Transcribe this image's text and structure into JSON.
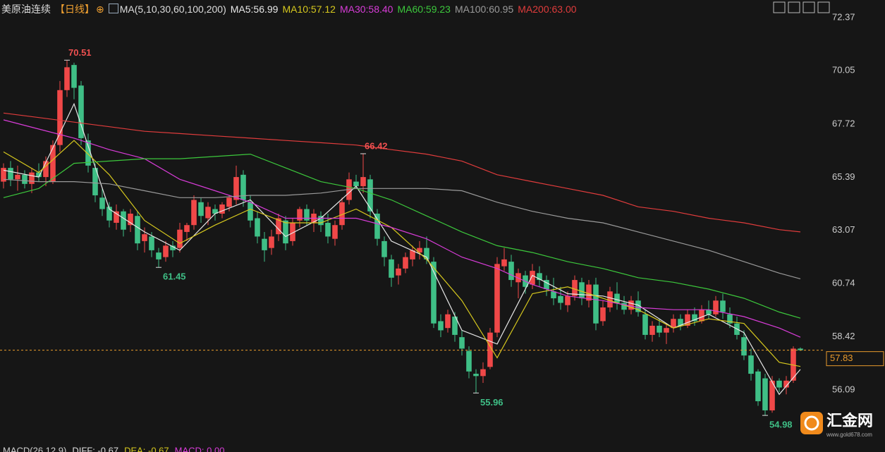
{
  "chart_data": {
    "type": "candlestick",
    "title": "美原油连续",
    "period": "【日线】",
    "ma_label": "MA(5,10,30,60,100,200)",
    "footer": [
      "MACD(26,12,9)",
      "DIFF: -0.67",
      "DEA: -0.67",
      "MACD: 0.00"
    ],
    "logo": {
      "name": "汇金网",
      "url": "www.gold678.com"
    },
    "up_color": "#f04848",
    "down_color": "#3fbf86",
    "ylim": [
      54.49,
      73.14
    ],
    "yticks": [
      72.37,
      70.05,
      67.72,
      65.39,
      63.07,
      60.74,
      58.42,
      56.09
    ],
    "last_price": 57.83,
    "annotations": [
      70.51,
      66.42,
      61.45,
      55.96,
      54.98
    ],
    "candles": [
      [
        65.2,
        66.0,
        64.9,
        65.8
      ],
      [
        65.8,
        66.1,
        65.0,
        65.3
      ],
      [
        65.3,
        65.9,
        64.8,
        65.5
      ],
      [
        65.5,
        65.7,
        64.9,
        65.1
      ],
      [
        65.1,
        65.8,
        64.7,
        65.6
      ],
      [
        65.6,
        66.0,
        65.2,
        65.4
      ],
      [
        65.4,
        66.3,
        65.0,
        66.1
      ],
      [
        65.2,
        67.0,
        65.1,
        66.8
      ],
      [
        66.8,
        69.6,
        66.5,
        69.2
      ],
      [
        69.2,
        70.51,
        68.9,
        70.2
      ],
      [
        70.3,
        70.4,
        68.8,
        69.3
      ],
      [
        69.4,
        69.6,
        66.8,
        67.1
      ],
      [
        67.0,
        67.3,
        65.6,
        65.9
      ],
      [
        65.8,
        66.0,
        64.3,
        64.6
      ],
      [
        64.5,
        64.9,
        63.7,
        64.0
      ],
      [
        64.1,
        64.3,
        63.2,
        63.5
      ],
      [
        63.4,
        64.2,
        63.1,
        63.9
      ],
      [
        63.9,
        64.0,
        62.8,
        63.1
      ],
      [
        63.3,
        64.0,
        63.0,
        63.8
      ],
      [
        63.7,
        63.9,
        62.2,
        62.5
      ],
      [
        62.6,
        63.2,
        62.1,
        62.9
      ],
      [
        62.8,
        63.0,
        61.9,
        62.2
      ],
      [
        62.1,
        62.3,
        61.45,
        61.8
      ],
      [
        61.9,
        62.6,
        61.7,
        62.4
      ],
      [
        62.4,
        62.6,
        61.9,
        62.2
      ],
      [
        62.3,
        63.4,
        62.1,
        63.1
      ],
      [
        63.0,
        63.4,
        62.6,
        63.3
      ],
      [
        63.3,
        64.6,
        63.1,
        64.4
      ],
      [
        64.3,
        64.5,
        63.4,
        63.7
      ],
      [
        63.6,
        64.3,
        63.3,
        64.1
      ],
      [
        64.0,
        64.2,
        63.5,
        63.8
      ],
      [
        63.8,
        64.3,
        63.6,
        64.2
      ],
      [
        64.1,
        64.6,
        63.9,
        64.5
      ],
      [
        64.4,
        65.9,
        64.2,
        65.4
      ],
      [
        65.5,
        65.7,
        64.1,
        64.4
      ],
      [
        64.3,
        64.6,
        63.2,
        63.5
      ],
      [
        63.6,
        63.9,
        62.5,
        62.8
      ],
      [
        62.7,
        63.0,
        61.7,
        62.2
      ],
      [
        62.3,
        63.1,
        62.0,
        62.8
      ],
      [
        62.9,
        63.8,
        62.6,
        63.6
      ],
      [
        63.5,
        63.7,
        62.2,
        62.5
      ],
      [
        62.6,
        63.6,
        62.4,
        63.4
      ],
      [
        63.5,
        64.1,
        63.2,
        64.0
      ],
      [
        64.0,
        64.2,
        63.3,
        63.5
      ],
      [
        63.4,
        64.0,
        63.0,
        63.8
      ],
      [
        63.7,
        63.9,
        63.0,
        63.3
      ],
      [
        63.4,
        63.8,
        62.5,
        62.8
      ],
      [
        62.7,
        63.5,
        62.4,
        63.3
      ],
      [
        63.3,
        64.5,
        63.1,
        64.3
      ],
      [
        64.4,
        65.6,
        64.2,
        65.3
      ],
      [
        65.2,
        65.5,
        64.9,
        65.0
      ],
      [
        65.0,
        66.42,
        64.7,
        65.4
      ],
      [
        65.3,
        65.5,
        63.6,
        63.9
      ],
      [
        63.8,
        64.0,
        62.4,
        62.7
      ],
      [
        62.6,
        62.8,
        61.5,
        61.9
      ],
      [
        61.8,
        62.0,
        60.6,
        61.0
      ],
      [
        61.1,
        61.6,
        60.7,
        61.4
      ],
      [
        61.4,
        62.1,
        61.2,
        61.9
      ],
      [
        61.8,
        62.4,
        61.5,
        62.2
      ],
      [
        62.1,
        62.6,
        61.8,
        62.3
      ],
      [
        62.3,
        62.8,
        61.6,
        61.8
      ],
      [
        61.7,
        61.9,
        58.8,
        59.0
      ],
      [
        59.1,
        59.4,
        58.4,
        58.7
      ],
      [
        58.8,
        59.6,
        58.6,
        59.4
      ],
      [
        59.3,
        59.5,
        58.2,
        58.5
      ],
      [
        58.4,
        58.7,
        57.6,
        57.9
      ],
      [
        57.8,
        58.0,
        56.6,
        56.9
      ],
      [
        56.8,
        57.0,
        55.96,
        56.7
      ],
      [
        56.7,
        57.3,
        56.4,
        57.0
      ],
      [
        57.1,
        58.8,
        57.0,
        58.6
      ],
      [
        58.6,
        61.9,
        58.4,
        61.6
      ],
      [
        61.5,
        62.3,
        61.3,
        61.8
      ],
      [
        61.7,
        62.0,
        60.6,
        60.9
      ],
      [
        60.8,
        61.4,
        60.1,
        61.2
      ],
      [
        61.1,
        61.3,
        60.3,
        60.6
      ],
      [
        60.7,
        61.6,
        60.5,
        61.3
      ],
      [
        61.2,
        61.5,
        60.6,
        60.9
      ],
      [
        60.9,
        61.1,
        60.2,
        60.5
      ],
      [
        60.4,
        61.0,
        59.8,
        60.1
      ],
      [
        60.2,
        60.6,
        59.6,
        59.9
      ],
      [
        59.8,
        60.4,
        59.5,
        60.2
      ],
      [
        60.2,
        61.1,
        60.0,
        60.9
      ],
      [
        60.8,
        61.0,
        59.8,
        60.1
      ],
      [
        60.0,
        60.9,
        59.7,
        60.7
      ],
      [
        60.7,
        61.0,
        58.7,
        59.0
      ],
      [
        59.1,
        60.0,
        58.9,
        59.7
      ],
      [
        59.7,
        60.6,
        59.5,
        60.4
      ],
      [
        60.3,
        60.8,
        59.6,
        59.9
      ],
      [
        59.9,
        60.2,
        59.4,
        59.6
      ],
      [
        59.6,
        60.2,
        59.4,
        60.0
      ],
      [
        60.0,
        60.4,
        59.3,
        59.5
      ],
      [
        59.4,
        59.6,
        58.3,
        58.5
      ],
      [
        58.5,
        59.1,
        58.2,
        58.9
      ],
      [
        58.9,
        59.2,
        58.4,
        58.6
      ],
      [
        58.6,
        59.0,
        58.1,
        58.8
      ],
      [
        58.8,
        59.4,
        58.6,
        59.2
      ],
      [
        59.2,
        59.4,
        58.7,
        58.9
      ],
      [
        58.9,
        59.6,
        58.8,
        59.4
      ],
      [
        59.4,
        59.7,
        58.9,
        59.1
      ],
      [
        59.1,
        59.8,
        59.0,
        59.6
      ],
      [
        59.6,
        60.0,
        59.2,
        59.4
      ],
      [
        59.4,
        60.2,
        59.3,
        60.0
      ],
      [
        60.0,
        60.3,
        59.2,
        59.5
      ],
      [
        59.4,
        59.7,
        58.8,
        59.0
      ],
      [
        59.0,
        59.3,
        58.3,
        58.5
      ],
      [
        58.4,
        58.7,
        57.4,
        57.6
      ],
      [
        57.6,
        57.9,
        56.5,
        56.8
      ],
      [
        56.9,
        57.0,
        55.4,
        55.6
      ],
      [
        56.6,
        56.8,
        54.98,
        55.2
      ],
      [
        55.2,
        56.7,
        55.1,
        56.5
      ],
      [
        56.5,
        56.6,
        56.0,
        56.2
      ],
      [
        56.2,
        56.7,
        55.9,
        56.5
      ],
      [
        56.5,
        58.0,
        56.4,
        57.9
      ],
      [
        57.9,
        57.95,
        57.8,
        57.83
      ]
    ],
    "ma_x": [
      0,
      5,
      10,
      15,
      20,
      25,
      30,
      35,
      40,
      45,
      50,
      55,
      60,
      65,
      70,
      75,
      80,
      85,
      90,
      95,
      100,
      105,
      110,
      113
    ],
    "series": [
      {
        "name": "MA5:56.99",
        "color": "#e8e8e8",
        "values": [
          65.7,
          65.4,
          68.6,
          64.0,
          63.0,
          62.2,
          63.8,
          64.4,
          62.8,
          63.6,
          65.0,
          62.6,
          61.9,
          58.7,
          58.1,
          61.1,
          60.3,
          60.2,
          59.8,
          58.8,
          59.4,
          58.6,
          55.9,
          56.99
        ]
      },
      {
        "name": "MA10:57.12",
        "color": "#d6c81e",
        "values": [
          66.5,
          65.6,
          67.0,
          65.5,
          63.5,
          62.5,
          63.3,
          64.0,
          63.4,
          63.4,
          64.0,
          63.2,
          61.8,
          60.0,
          57.5,
          60.3,
          60.6,
          60.1,
          59.6,
          58.8,
          59.2,
          59.0,
          57.3,
          57.12
        ]
      },
      {
        "name": "MA30:58.40",
        "color": "#d83cd8",
        "values": [
          67.9,
          67.5,
          67.1,
          66.6,
          66.2,
          65.3,
          64.8,
          64.3,
          63.6,
          63.6,
          63.6,
          63.2,
          62.7,
          61.9,
          61.4,
          60.7,
          60.2,
          60.0,
          59.7,
          59.6,
          59.6,
          59.3,
          58.8,
          58.4
        ]
      },
      {
        "name": "MA60:59.23",
        "color": "#3cc83c",
        "values": [
          64.5,
          64.9,
          66.0,
          66.1,
          66.2,
          66.2,
          66.3,
          66.4,
          65.8,
          65.2,
          64.9,
          64.4,
          63.7,
          63.0,
          62.4,
          62.1,
          61.7,
          61.4,
          61.0,
          60.8,
          60.5,
          60.1,
          59.5,
          59.23
        ]
      },
      {
        "name": "MA100:60.95",
        "color": "#9a9a9a",
        "values": [
          65.3,
          65.2,
          65.2,
          65.1,
          64.8,
          64.5,
          64.5,
          64.6,
          64.6,
          64.7,
          64.9,
          64.9,
          64.9,
          64.8,
          64.3,
          63.9,
          63.6,
          63.4,
          63.0,
          62.6,
          62.2,
          61.7,
          61.2,
          60.95
        ]
      },
      {
        "name": "MA200:63.00",
        "color": "#e03c3c",
        "values": [
          68.2,
          68.0,
          67.8,
          67.6,
          67.4,
          67.3,
          67.2,
          67.1,
          67.0,
          66.9,
          66.8,
          66.6,
          66.4,
          66.1,
          65.5,
          65.2,
          64.9,
          64.6,
          64.1,
          63.9,
          63.6,
          63.4,
          63.1,
          63.0
        ]
      }
    ]
  }
}
